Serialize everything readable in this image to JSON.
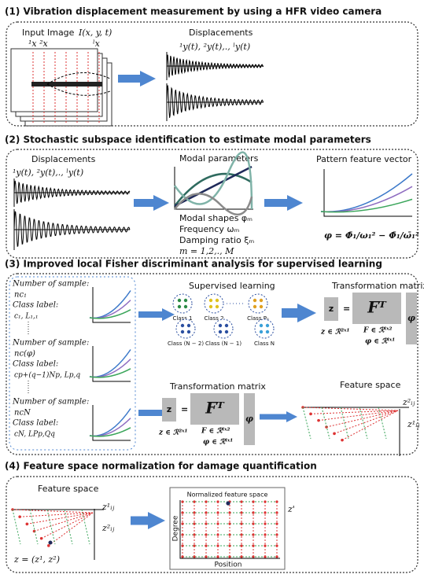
{
  "s1": {
    "title": "(1) Vibration displacement measurement by using a HFR video camera",
    "input_image": "Input Image",
    "intensity": "I(x, y, t)",
    "x_first": "¹x ²x",
    "x_last": "ˡx",
    "displacements": "Displacements",
    "signals": "¹y(t), ²y(t),., ˡy(t)"
  },
  "s2": {
    "title": "(2) Stochastic subspace identification to estimate modal parameters",
    "displacements": "Displacements",
    "signals": "¹y(t), ²y(t),., ˡy(t)",
    "modal_parameters": "Modal parameters",
    "modal_shapes": "Modal shapes φₘ",
    "frequency": "Frequency      ωₘ",
    "damping": "Damping ratio ξₘ",
    "modes": "m = 1,2,., M",
    "pattern": "Pattern feature vector",
    "formula": "φ = Φ̄₁/ω₁² − Φ̄₁/ω̄₁²"
  },
  "s3": {
    "title": "(3) Improved local Fisher discriminant analysis for supervised learning",
    "groups": [
      {
        "number_label": "Number of sample:",
        "count": "nc₁",
        "class_label": "Class label:",
        "class": "c₁, L₁,₁"
      },
      {
        "number_label": "Number of sample:",
        "count": "nc(φ)",
        "class_label": "Class label:",
        "class": "cp+(q−1)Np, Lp,q"
      },
      {
        "number_label": "Number of sample:",
        "count": "ncN",
        "class_label": "Class label:",
        "class": "cN, LPp,Qq"
      }
    ],
    "supervised": "Supervised learning",
    "classes": [
      "Class 1",
      "Class 2",
      "Class Pₚ",
      "Class (N − 2)",
      "Class (N − 1)",
      "Class N"
    ],
    "transform_top": {
      "title": "Transformation matrix",
      "z": "z",
      "eq": "=",
      "F": "Fᵀ",
      "phi": "φ",
      "z_dim": "z ∈ ℛ²ˣ¹",
      "F_dim": "F ∈ ℛˡˣ²",
      "phi_dim": "φ ∈ ℛˡˣ¹"
    },
    "transform_bottom": {
      "title": "Transformation matrix",
      "z": "z",
      "eq": "=",
      "F": "Fᵀ",
      "phi": "φ",
      "z_dim": "z ∈ ℛ²ˣ¹",
      "F_dim": "F ∈ ℛˡˣ²",
      "phi_dim": "φ ∈ ℛˡˣ¹"
    },
    "feature_space": "Feature space",
    "z1": "z¹ᵢⱼ",
    "z2": "z²ᵢⱼ"
  },
  "s4": {
    "title": "(4) Feature space normalization for damage quantification",
    "feature_space": "Feature space",
    "z1": "z¹ᵢⱼ",
    "z2": "z²ᵢⱼ",
    "z_def": "z = (z¹, z²)",
    "normalized": "Normalized feature space",
    "degree": "Degree",
    "position": "Position",
    "z_prime": "z'"
  }
}
